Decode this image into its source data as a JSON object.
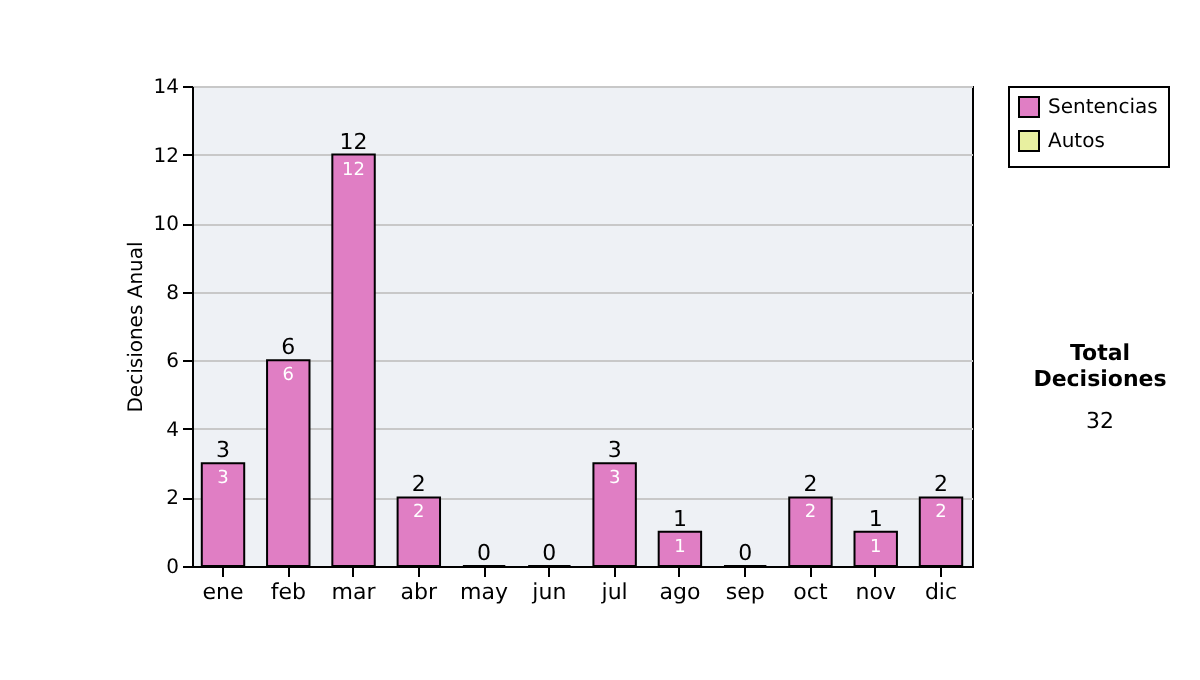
{
  "chart_data": {
    "type": "bar",
    "ylabel": "Decisiones Anual",
    "categories": [
      "ene",
      "feb",
      "mar",
      "abr",
      "may",
      "jun",
      "jul",
      "ago",
      "sep",
      "oct",
      "nov",
      "dic"
    ],
    "series": [
      {
        "name": "Sentencias",
        "color": "#e07ec4",
        "values": [
          3,
          6,
          12,
          2,
          0,
          0,
          3,
          1,
          0,
          2,
          1,
          2
        ],
        "value_labels": [
          "3",
          "6",
          "12",
          "2",
          null,
          null,
          "3",
          "1",
          null,
          "2",
          "1",
          "2"
        ]
      },
      {
        "name": "Autos",
        "color": "#e8f0a0",
        "values": [
          null,
          null,
          null,
          null,
          null,
          null,
          null,
          null,
          null,
          null,
          null,
          null
        ]
      }
    ],
    "totals": [
      "3",
      "6",
      "12",
      "2",
      "0",
      "0",
      "3",
      "1",
      "0",
      "2",
      "1",
      "2"
    ],
    "ylim": [
      0,
      14
    ],
    "yticks": [
      0,
      2,
      4,
      6,
      8,
      10,
      12,
      14
    ],
    "grid": "y",
    "legend": "right",
    "annotations": [
      "Total Decisiones",
      "32"
    ]
  }
}
